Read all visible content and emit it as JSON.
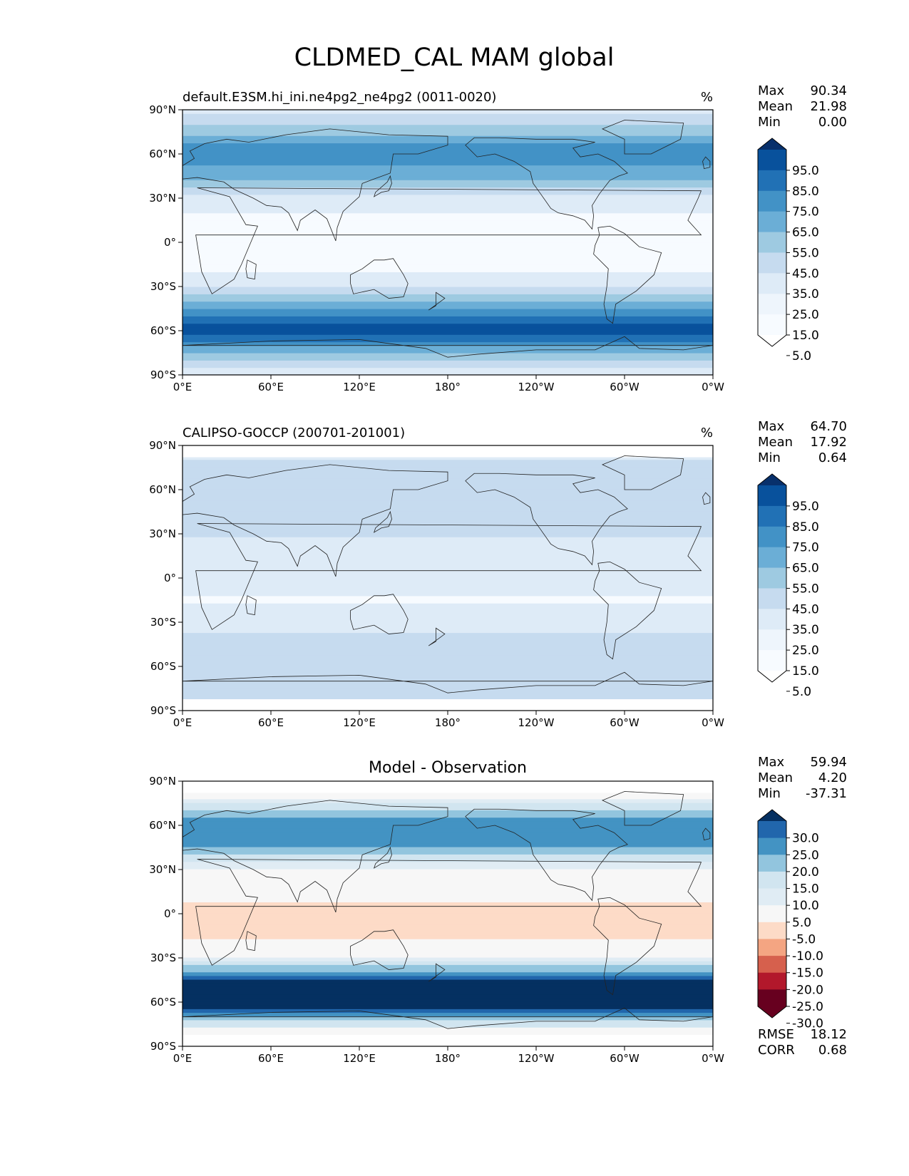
{
  "figure": {
    "title": "CLDMED_CAL MAM global",
    "colors": {
      "sequential": [
        "#f7fbff",
        "#deebf7",
        "#c6dbef",
        "#9ecae1",
        "#6baed6",
        "#4292c6",
        "#2171b5",
        "#08519c",
        "#08306b"
      ],
      "diverging_blue": [
        "#f7f7f7",
        "#e0ecf4",
        "#d1e5f0",
        "#92c5de",
        "#4393c3",
        "#2166ac",
        "#053061"
      ],
      "diverging_red": [
        "#f7f7f7",
        "#fddbc7",
        "#f4a582",
        "#d6604d",
        "#b2182b",
        "#67001f"
      ],
      "coastline": "#222222"
    }
  },
  "chart_data": [
    {
      "type": "heatmap",
      "panel": "test",
      "title": "default.E3SM.hi_ini.ne4pg2_ne4pg2 (0011-0020)",
      "units": "%",
      "xlabel": "",
      "ylabel": "",
      "x_ticks": [
        "0°E",
        "60°E",
        "120°E",
        "180°",
        "120°W",
        "60°W",
        "0°W"
      ],
      "y_ticks": [
        "90°N",
        "60°N",
        "30°N",
        "0°",
        "30°S",
        "60°S",
        "90°S"
      ],
      "xlim": [
        0,
        360
      ],
      "ylim": [
        -90,
        90
      ],
      "stats": [
        {
          "label": "Max",
          "value": "90.34"
        },
        {
          "label": "Mean",
          "value": "21.98"
        },
        {
          "label": "Min",
          "value": "0.00"
        }
      ],
      "colorbar": {
        "levels": [
          "95.0",
          "85.0",
          "75.0",
          "65.0",
          "55.0",
          "45.0",
          "35.0",
          "25.0",
          "15.0",
          "5.0"
        ],
        "extend": "both"
      },
      "zonal_profile": {
        "lat": [
          -90,
          -75,
          -60,
          -45,
          -30,
          -15,
          0,
          15,
          30,
          45,
          60,
          75,
          90
        ],
        "value": [
          12,
          40,
          82,
          55,
          20,
          5,
          3,
          6,
          18,
          45,
          62,
          40,
          15
        ]
      }
    },
    {
      "type": "heatmap",
      "panel": "reference",
      "title": "CALIPSO-GOCCP (200701-201001)",
      "units": "%",
      "xlabel": "",
      "ylabel": "",
      "x_ticks": [
        "0°E",
        "60°E",
        "120°E",
        "180°",
        "120°W",
        "60°W",
        "0°W"
      ],
      "y_ticks": [
        "90°N",
        "60°N",
        "30°N",
        "0°",
        "30°S",
        "60°S",
        "90°S"
      ],
      "xlim": [
        0,
        360
      ],
      "ylim": [
        -90,
        90
      ],
      "stats": [
        {
          "label": "Max",
          "value": "64.70"
        },
        {
          "label": "Mean",
          "value": "17.92"
        },
        {
          "label": "Min",
          "value": "0.64"
        }
      ],
      "colorbar": {
        "levels": [
          "95.0",
          "85.0",
          "75.0",
          "65.0",
          "55.0",
          "45.0",
          "35.0",
          "25.0",
          "15.0",
          "5.0"
        ],
        "extend": "both"
      },
      "zonal_profile": {
        "lat": [
          -82,
          -75,
          -60,
          -45,
          -30,
          -15,
          0,
          15,
          30,
          45,
          60,
          75,
          82
        ],
        "value": [
          22,
          25,
          30,
          28,
          15,
          10,
          12,
          15,
          22,
          25,
          28,
          25,
          20
        ]
      }
    },
    {
      "type": "heatmap",
      "panel": "difference",
      "title": "Model - Observation",
      "units": "",
      "xlabel": "",
      "ylabel": "",
      "x_ticks": [
        "0°E",
        "60°E",
        "120°E",
        "180°",
        "120°W",
        "60°W",
        "0°W"
      ],
      "y_ticks": [
        "90°N",
        "60°N",
        "30°N",
        "0°",
        "30°S",
        "60°S",
        "90°S"
      ],
      "xlim": [
        0,
        360
      ],
      "ylim": [
        -90,
        90
      ],
      "stats": [
        {
          "label": "Max",
          "value": "59.94"
        },
        {
          "label": "Mean",
          "value": "4.20"
        },
        {
          "label": "Min",
          "value": "-37.31"
        }
      ],
      "colorbar": {
        "levels": [
          "30.0",
          "25.0",
          "20.0",
          "15.0",
          "10.0",
          "5.0",
          "-5.0",
          "-10.0",
          "-15.0",
          "-20.0",
          "-25.0",
          "-30.0"
        ],
        "extend": "both"
      },
      "metrics": [
        {
          "label": "RMSE",
          "value": "18.12"
        },
        {
          "label": "CORR",
          "value": "0.68"
        }
      ],
      "zonal_profile": {
        "lat": [
          -82,
          -75,
          -60,
          -45,
          -30,
          -15,
          0,
          15,
          30,
          45,
          60,
          75,
          82
        ],
        "value": [
          -5,
          12,
          35,
          32,
          5,
          -6,
          -8,
          -3,
          4,
          20,
          25,
          10,
          -5
        ]
      }
    }
  ]
}
